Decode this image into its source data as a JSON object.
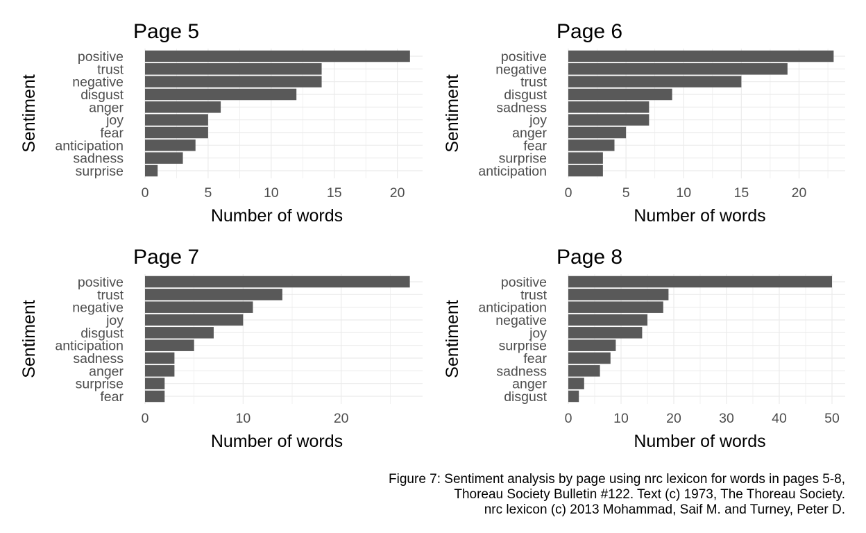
{
  "chart_data": [
    {
      "type": "bar",
      "orientation": "horizontal",
      "title": "Page 5",
      "xlabel": "Number of words",
      "ylabel": "Sentiment",
      "categories": [
        "positive",
        "trust",
        "negative",
        "disgust",
        "anger",
        "joy",
        "fear",
        "anticipation",
        "sadness",
        "surprise"
      ],
      "values": [
        21,
        14,
        14,
        12,
        6,
        5,
        5,
        4,
        3,
        1
      ],
      "xlim": [
        0,
        22
      ],
      "xticks": [
        0,
        5,
        10,
        15,
        20
      ],
      "grid": true,
      "bar_color": "#595959"
    },
    {
      "type": "bar",
      "orientation": "horizontal",
      "title": "Page 6",
      "xlabel": "Number of words",
      "ylabel": "Sentiment",
      "categories": [
        "positive",
        "negative",
        "trust",
        "disgust",
        "sadness",
        "joy",
        "anger",
        "fear",
        "surprise",
        "anticipation"
      ],
      "values": [
        23,
        19,
        15,
        9,
        7,
        7,
        5,
        4,
        3,
        3
      ],
      "xlim": [
        0,
        24
      ],
      "xticks": [
        0,
        5,
        10,
        15,
        20
      ],
      "grid": true,
      "bar_color": "#595959"
    },
    {
      "type": "bar",
      "orientation": "horizontal",
      "title": "Page 7",
      "xlabel": "Number of words",
      "ylabel": "Sentiment",
      "categories": [
        "positive",
        "trust",
        "negative",
        "joy",
        "disgust",
        "anticipation",
        "sadness",
        "anger",
        "surprise",
        "fear"
      ],
      "values": [
        27,
        14,
        11,
        10,
        7,
        5,
        3,
        3,
        2,
        2
      ],
      "xlim": [
        0,
        28.3
      ],
      "xticks": [
        0,
        10,
        20
      ],
      "grid": true,
      "bar_color": "#595959"
    },
    {
      "type": "bar",
      "orientation": "horizontal",
      "title": "Page 8",
      "xlabel": "Number of words",
      "ylabel": "Sentiment",
      "categories": [
        "positive",
        "trust",
        "anticipation",
        "negative",
        "joy",
        "surprise",
        "fear",
        "sadness",
        "anger",
        "disgust"
      ],
      "values": [
        50,
        19,
        18,
        15,
        14,
        9,
        8,
        6,
        3,
        2
      ],
      "xlim": [
        0,
        52.5
      ],
      "xticks": [
        0,
        10,
        20,
        30,
        40,
        50
      ],
      "grid": true,
      "bar_color": "#595959"
    }
  ],
  "caption": {
    "line1": "Figure 7: Sentiment analysis by page using nrc lexicon for words in pages 5-8,",
    "line2": "Thoreau Society Bulletin #122. Text (c) 1973, The Thoreau Society.",
    "line3": "nrc lexicon (c) 2013 Mohammad, Saif M. and Turney, Peter D."
  },
  "colors": {
    "bar": "#595959",
    "grid": "#ebebeb",
    "text": "#000000",
    "tick_text": "#4d4d4d"
  }
}
